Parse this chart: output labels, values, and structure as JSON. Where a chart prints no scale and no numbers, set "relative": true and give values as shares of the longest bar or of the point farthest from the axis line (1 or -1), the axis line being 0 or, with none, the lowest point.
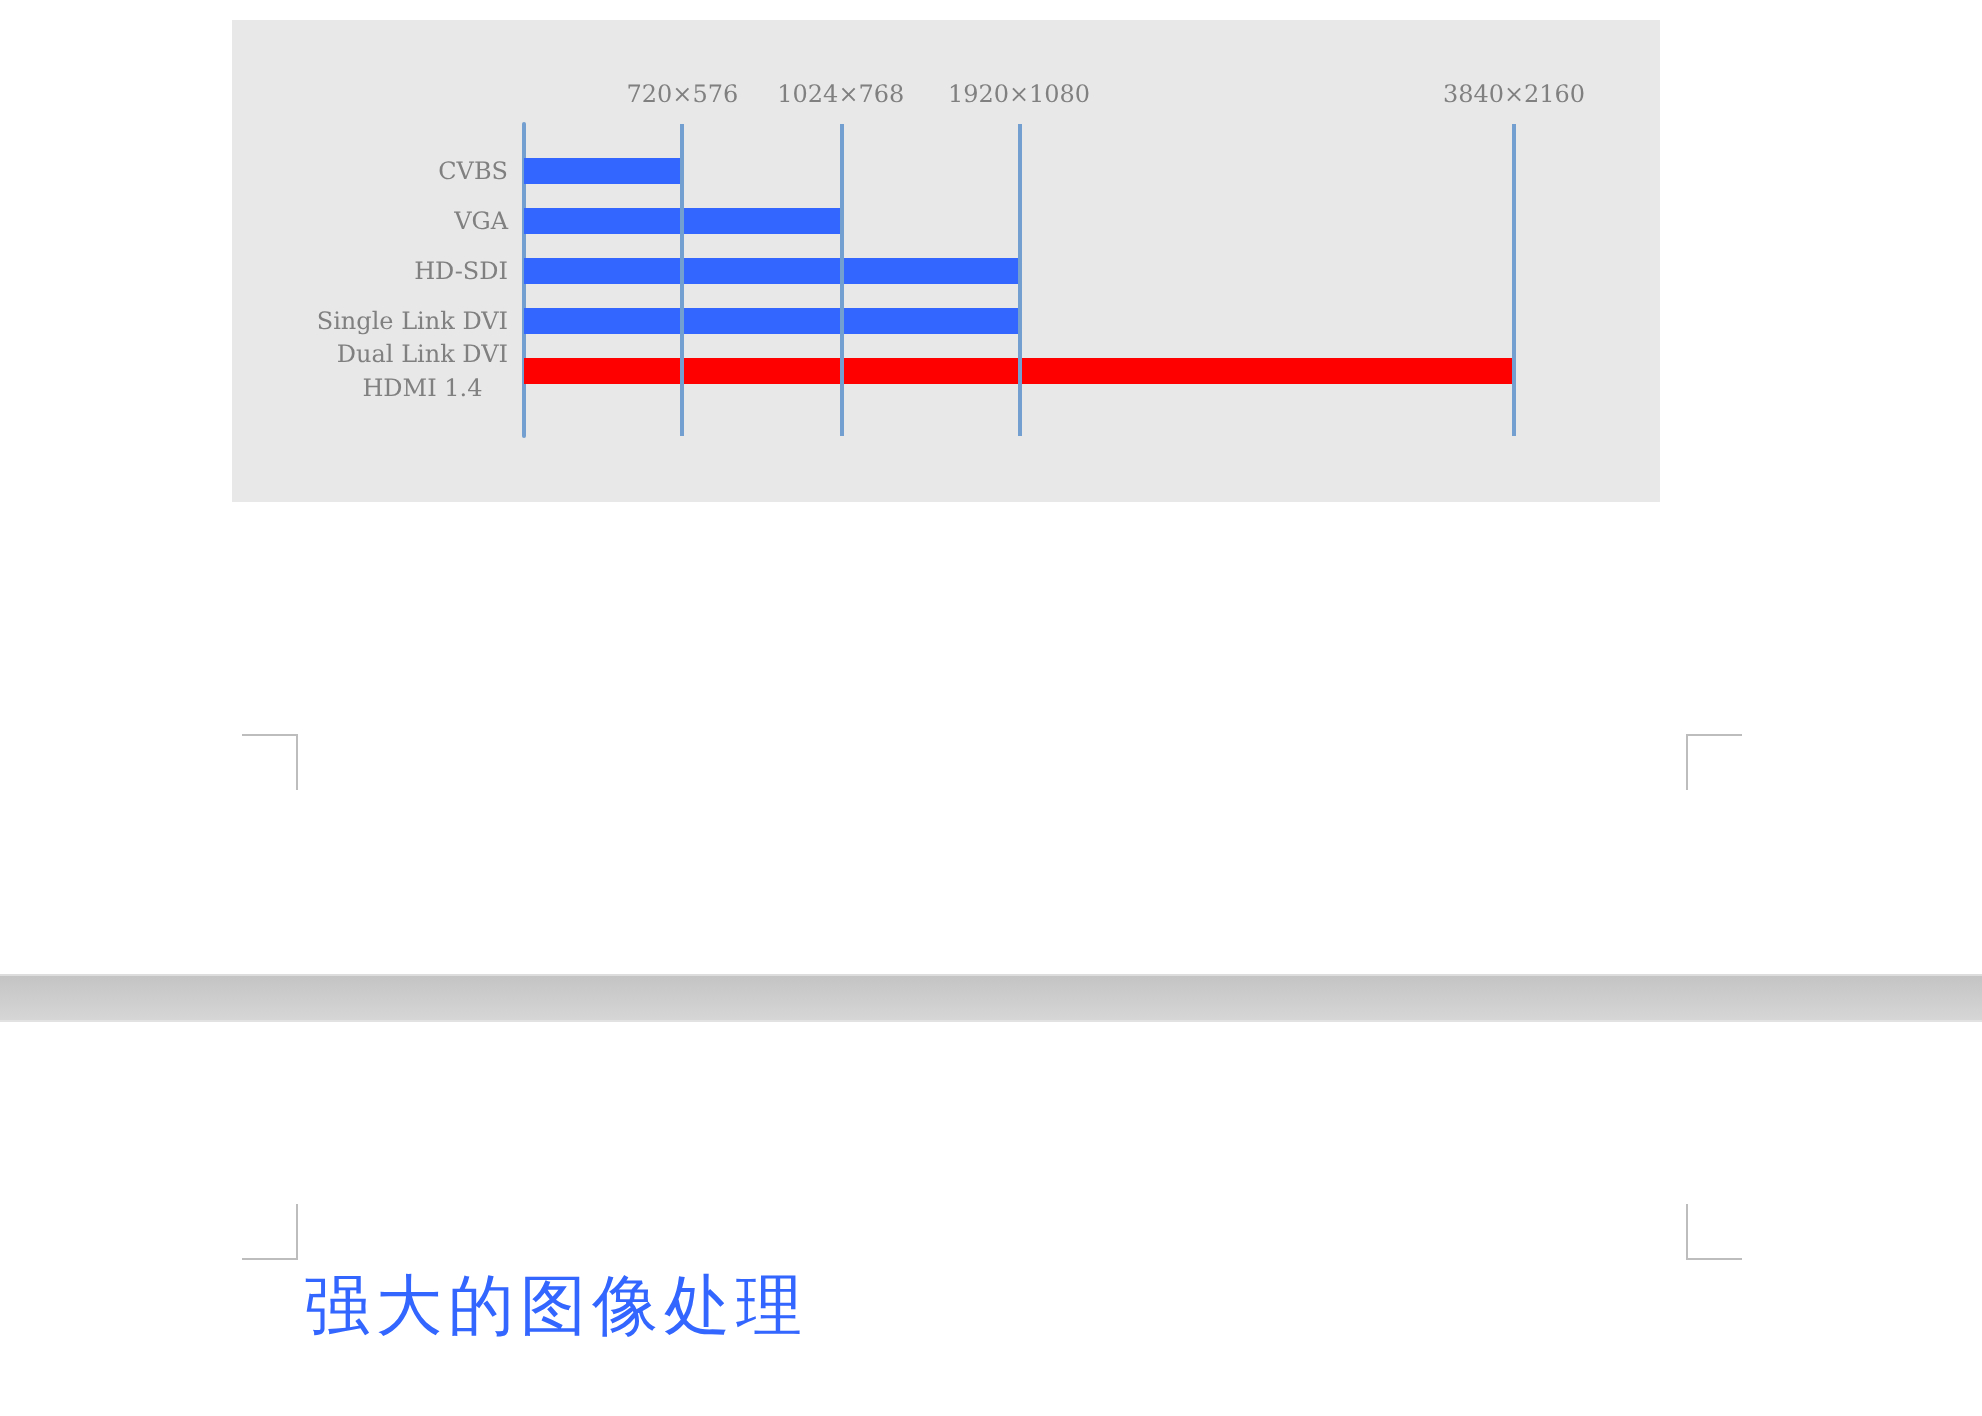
{
  "chart_data": {
    "type": "bar",
    "orientation": "horizontal",
    "relative": true,
    "categories": [
      "CVBS",
      "VGA",
      "HD-SDI",
      "Single Link DVI",
      "Dual Link DVI\nHDMI 1.4"
    ],
    "values": [
      0.16,
      0.32,
      0.5,
      0.5,
      1
    ],
    "colors": [
      "#3366ff",
      "#3366ff",
      "#3366ff",
      "#3366ff",
      "#ff0000"
    ],
    "ref_lines": [
      {
        "axis": "x",
        "value": 0.16,
        "label": "720×576",
        "color": "#729fcf"
      },
      {
        "axis": "x",
        "value": 0.32,
        "label": "1024×768",
        "color": "#729fcf"
      },
      {
        "axis": "x",
        "value": 0.5,
        "label": "1920×1080",
        "color": "#729fcf"
      },
      {
        "axis": "x",
        "value": 1,
        "label": "3840×2160",
        "color": "#729fcf"
      }
    ],
    "grid": false,
    "annotations": [
      "强大的图像处理"
    ]
  }
}
